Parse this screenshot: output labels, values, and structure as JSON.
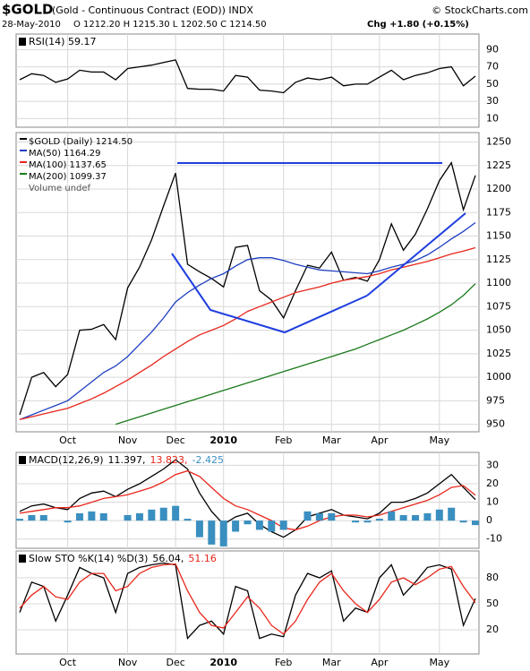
{
  "header": {
    "symbol": "$GOLD",
    "name": "(Gold - Continuous Contract (EOD)) INDX",
    "date": "28-May-2010",
    "quote": "O 1212.20  H 1215.30  L 1202.50  C 1214.50",
    "change": "Chg +1.80 (+0.15%)",
    "source": "© StockCharts.com"
  },
  "chart_data": [
    {
      "type": "line",
      "label": "RSI(14) 59.17",
      "color": "#000000",
      "ylim": [
        0,
        108
      ],
      "yticks": [
        10,
        30,
        50,
        70,
        90
      ],
      "grid": true,
      "values": [
        55,
        62,
        60,
        52,
        56,
        66,
        64,
        64,
        55,
        68,
        70,
        72,
        75,
        78,
        45,
        44,
        44,
        42,
        60,
        58,
        43,
        42,
        40,
        52,
        57,
        55,
        58,
        48,
        50,
        50,
        58,
        66,
        55,
        60,
        63,
        68,
        70,
        48,
        59.17
      ]
    },
    {
      "type": "line",
      "ylim": [
        942,
        1260
      ],
      "yticks": [
        950,
        975,
        1000,
        1025,
        1050,
        1075,
        1100,
        1125,
        1150,
        1175,
        1200,
        1225,
        1250
      ],
      "grid": true,
      "volume_label": "Volume undef",
      "categories": [
        null,
        null,
        null,
        null,
        "Oct",
        null,
        null,
        null,
        null,
        "Nov",
        null,
        null,
        null,
        "Dec",
        null,
        null,
        null,
        "2010",
        null,
        null,
        null,
        null,
        "Feb",
        null,
        null,
        null,
        "Mar",
        null,
        null,
        null,
        "Apr",
        null,
        null,
        null,
        null,
        "May",
        null,
        null,
        null
      ],
      "series": [
        {
          "name": "$GOLD (Daily) 1214.50",
          "color": "#000000",
          "values": [
            960,
            1000,
            1005,
            990,
            1003,
            1050,
            1051,
            1056,
            1040,
            1095,
            1117,
            1146,
            1182,
            1217,
            1120,
            1112,
            1105,
            1096,
            1138,
            1140,
            1092,
            1082,
            1063,
            1092,
            1119,
            1116,
            1133,
            1103,
            1106,
            1102,
            1125,
            1163,
            1135,
            1152,
            1179,
            1209,
            1228,
            1178,
            1214.5
          ]
        },
        {
          "name": "MA(50) 1164.29",
          "color": "#1f3fbf",
          "values": [
            955,
            960,
            965,
            970,
            975,
            985,
            995,
            1005,
            1012,
            1022,
            1035,
            1048,
            1063,
            1080,
            1090,
            1098,
            1105,
            1110,
            1118,
            1125,
            1127,
            1127,
            1124,
            1120,
            1117,
            1114,
            1113,
            1112,
            1111,
            1110,
            1113,
            1117,
            1120,
            1124,
            1130,
            1138,
            1147,
            1155,
            1164.29
          ]
        },
        {
          "name": "MA(100) 1137.65",
          "color": "#e8261b",
          "values": [
            955,
            958,
            961,
            964,
            967,
            972,
            977,
            983,
            990,
            997,
            1005,
            1013,
            1022,
            1030,
            1038,
            1045,
            1050,
            1055,
            1062,
            1070,
            1075,
            1080,
            1085,
            1090,
            1093,
            1096,
            1100,
            1103,
            1105,
            1107,
            1110,
            1114,
            1117,
            1120,
            1123,
            1127,
            1131,
            1134,
            1137.65
          ]
        },
        {
          "name": "MA(200) 1099.37",
          "color": "#1a7a1a",
          "values": [
            null,
            null,
            null,
            null,
            null,
            null,
            null,
            null,
            950,
            954,
            958,
            962,
            966,
            970,
            974,
            978,
            982,
            986,
            990,
            994,
            998,
            1002,
            1006,
            1010,
            1014,
            1018,
            1022,
            1026,
            1030,
            1035,
            1040,
            1045,
            1050,
            1056,
            1062,
            1069,
            1077,
            1087,
            1099.37
          ]
        }
      ]
    },
    {
      "type": "line",
      "label": "MACD(12,26,9)",
      "ylim": [
        -15,
        37
      ],
      "yticks": [
        -10,
        0,
        10,
        20,
        30
      ],
      "grid": true,
      "series": [
        {
          "name": "11.397,",
          "color": "#000000",
          "values": [
            5,
            8,
            9,
            7,
            6,
            12,
            15,
            16,
            13,
            17,
            20,
            24,
            28,
            33,
            28,
            15,
            5,
            -2,
            2,
            4,
            -2,
            -6,
            -9,
            -5,
            2,
            4,
            6,
            3,
            2,
            1,
            4,
            10,
            10,
            12,
            15,
            20,
            25,
            18,
            11.397
          ]
        },
        {
          "name": "13.823,",
          "color": "#e8261b",
          "values": [
            4,
            5,
            6,
            7,
            7,
            8,
            10,
            12,
            13,
            14,
            16,
            18,
            21,
            25,
            27,
            24,
            18,
            12,
            8,
            6,
            3,
            0,
            -4,
            -5,
            -3,
            0,
            2,
            3,
            3,
            2,
            3,
            5,
            7,
            9,
            11,
            14,
            18,
            19,
            13.823
          ]
        },
        {
          "name": "-2.425",
          "color": "#3a8fc0",
          "type": "bar",
          "values": [
            1,
            3,
            3,
            0,
            -1,
            4,
            5,
            4,
            0,
            3,
            4,
            6,
            7,
            8,
            1,
            -9,
            -13,
            -14,
            -6,
            -2,
            -5,
            -6,
            -5,
            0,
            5,
            4,
            4,
            0,
            -1,
            -1,
            1,
            5,
            3,
            3,
            4,
            6,
            7,
            -1,
            -2.425
          ]
        }
      ]
    },
    {
      "type": "line",
      "label": "Slow STO %K(14) %D(3)",
      "ylim": [
        -8,
        111
      ],
      "yticks": [
        20,
        50,
        80
      ],
      "grid": true,
      "categories": [
        null,
        null,
        null,
        null,
        "Oct",
        null,
        null,
        null,
        null,
        "Nov",
        null,
        null,
        null,
        "Dec",
        null,
        null,
        null,
        "2010",
        null,
        null,
        null,
        null,
        "Feb",
        null,
        null,
        null,
        "Mar",
        null,
        null,
        null,
        "Apr",
        null,
        null,
        null,
        null,
        "May",
        null,
        null,
        null
      ],
      "series": [
        {
          "name": "56.04,",
          "color": "#000000",
          "values": [
            40,
            75,
            70,
            30,
            60,
            92,
            85,
            80,
            40,
            85,
            92,
            95,
            97,
            95,
            10,
            25,
            30,
            15,
            70,
            65,
            10,
            15,
            12,
            60,
            85,
            80,
            88,
            30,
            45,
            40,
            80,
            95,
            60,
            75,
            92,
            95,
            90,
            25,
            56.04
          ]
        },
        {
          "name": "51.16",
          "color": "#e8261b",
          "values": [
            45,
            60,
            70,
            58,
            55,
            75,
            85,
            85,
            65,
            70,
            85,
            92,
            95,
            96,
            65,
            40,
            25,
            22,
            40,
            58,
            45,
            25,
            15,
            30,
            55,
            75,
            85,
            65,
            50,
            40,
            55,
            75,
            80,
            72,
            80,
            90,
            93,
            70,
            51.16
          ]
        }
      ]
    }
  ]
}
